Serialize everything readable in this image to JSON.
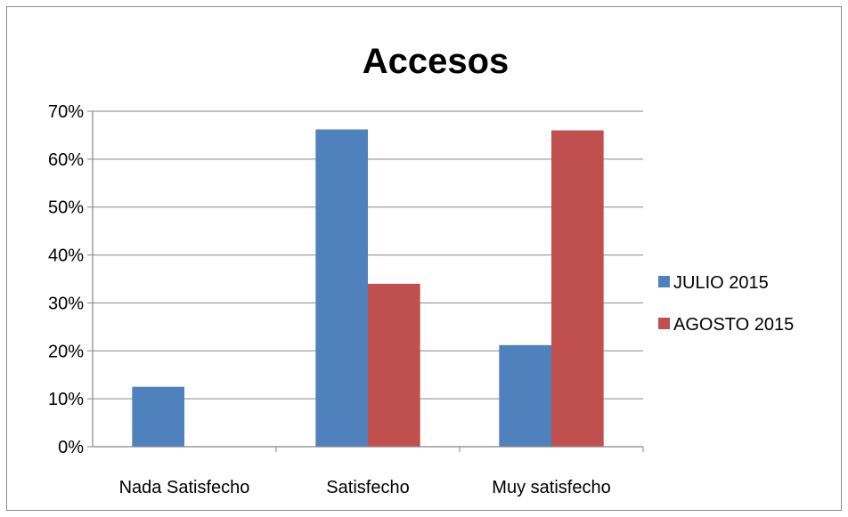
{
  "chart_data": {
    "type": "bar",
    "title": "Accesos",
    "xlabel": "",
    "ylabel": "",
    "categories": [
      "Nada Satisfecho",
      "Satisfecho",
      "Muy satisfecho"
    ],
    "series": [
      {
        "name": "JULIO 2015",
        "values": [
          0.125,
          0.662,
          0.212
        ],
        "color": "#4f81bd"
      },
      {
        "name": "AGOSTO 2015",
        "values": [
          0.0,
          0.34,
          0.66
        ],
        "color": "#c0504d"
      }
    ],
    "ylim": [
      0,
      0.7
    ],
    "yticks": [
      "0%",
      "10%",
      "20%",
      "30%",
      "40%",
      "50%",
      "60%",
      "70%"
    ],
    "grid": true,
    "legend_position": "right"
  }
}
